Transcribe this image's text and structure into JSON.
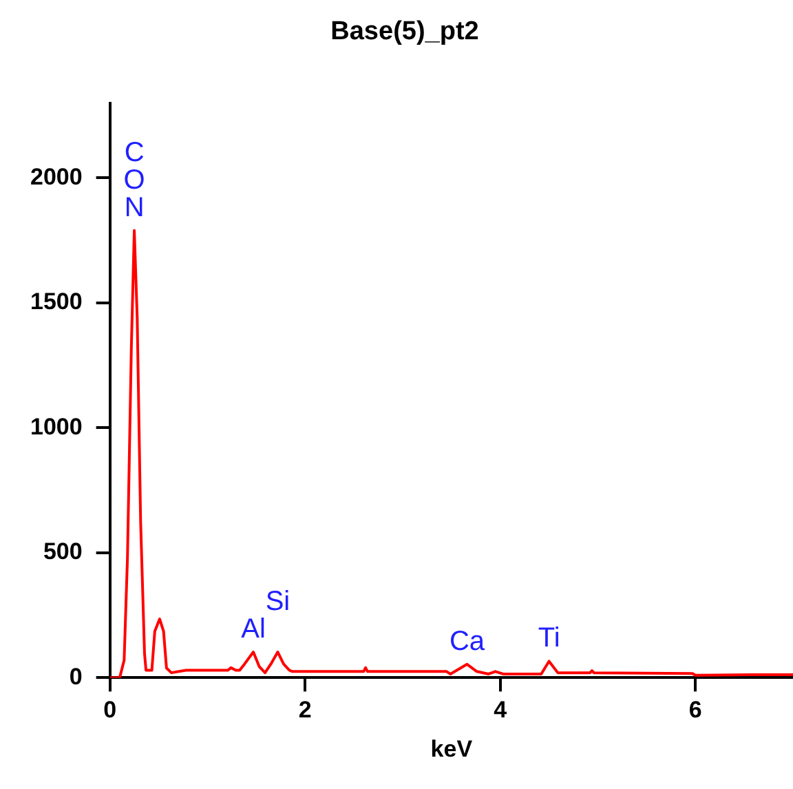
{
  "chart_data": {
    "type": "line",
    "title": "Base(5)_pt2",
    "xlabel": "keV",
    "xlim": [
      0,
      7
    ],
    "xticks": [
      0,
      2,
      4,
      6
    ],
    "ylim": [
      0,
      2300
    ],
    "yticks": [
      0,
      500,
      1000,
      1500,
      2000
    ],
    "grid": false,
    "legend": false,
    "marker": "none",
    "line_style": "solid",
    "series": [
      {
        "color": "#ff0000",
        "x": [
          0,
          0.1,
          0.146,
          0.18,
          0.22,
          0.25,
          0.28,
          0.315,
          0.355,
          0.37,
          0.43,
          0.46,
          0.51,
          0.55,
          0.58,
          0.63,
          0.78,
          1.21,
          1.24,
          1.29,
          1.33,
          1.38,
          1.47,
          1.53,
          1.59,
          1.65,
          1.72,
          1.78,
          1.84,
          1.87,
          2.6,
          2.62,
          2.64,
          3.45,
          3.49,
          3.66,
          3.76,
          3.88,
          3.95,
          4.03,
          4.42,
          4.5,
          4.59,
          4.92,
          4.94,
          4.96,
          5.97,
          6.0,
          6.57,
          7.0
        ],
        "values": [
          0,
          0,
          70,
          478,
          1323,
          1790,
          1440,
          624,
          97,
          30,
          30,
          186,
          235,
          186,
          39,
          20,
          30,
          30,
          40,
          30,
          30,
          55,
          103,
          45,
          20,
          55,
          103,
          55,
          30,
          25,
          25,
          40,
          25,
          25,
          15,
          54,
          25,
          15,
          25,
          15,
          15,
          66,
          20,
          20,
          28,
          20,
          17,
          10,
          12,
          12
        ]
      }
    ],
    "annotations": [
      {
        "text": "N",
        "x": 0.25,
        "y": 1790
      },
      {
        "text": "O",
        "x": 0.25,
        "y": 1790
      },
      {
        "text": "C",
        "x": 0.25,
        "y": 1790
      },
      {
        "text": "Al",
        "x": 1.47,
        "y": 103
      },
      {
        "text": "Si",
        "x": 1.72,
        "y": 103
      },
      {
        "text": "Ca",
        "x": 3.66,
        "y": 54
      },
      {
        "text": "Ti",
        "x": 4.5,
        "y": 66
      }
    ]
  }
}
